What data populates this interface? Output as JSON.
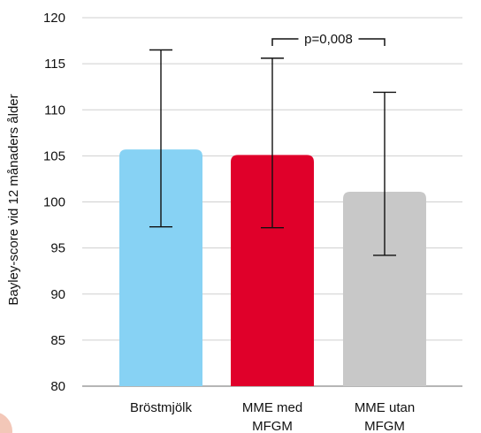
{
  "chart_data": {
    "type": "bar",
    "title": "",
    "xlabel": "",
    "ylabel": "Bayley-score vid 12 månaders ålder",
    "categories": [
      [
        "Bröstmjölk"
      ],
      [
        "MME med",
        "MFGM"
      ],
      [
        "MME utan",
        "MFGM"
      ]
    ],
    "values": [
      105.7,
      105.1,
      101.1
    ],
    "error_upper": [
      116.5,
      115.6,
      111.9
    ],
    "error_lower": [
      97.3,
      97.2,
      94.2
    ],
    "colors": [
      "#87d2f4",
      "#e0002a",
      "#c8c8c8"
    ],
    "ylim": [
      80,
      120
    ],
    "yticks": [
      80,
      85,
      90,
      95,
      100,
      105,
      110,
      115,
      120
    ],
    "grid": true,
    "annotation": {
      "text": "p=0,008",
      "between": [
        1,
        2
      ]
    }
  },
  "decor": {
    "corner_color": "#f3c7b8"
  }
}
